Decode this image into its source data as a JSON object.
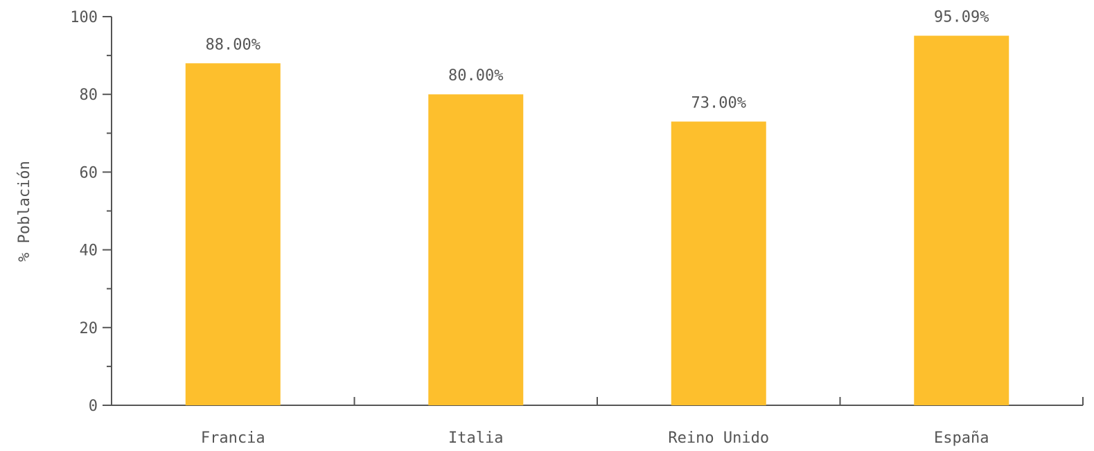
{
  "chart_data": {
    "type": "bar",
    "title": "",
    "xlabel": "",
    "ylabel": "% Población",
    "categories": [
      "Francia",
      "Italia",
      "Reino Unido",
      "España"
    ],
    "values": [
      88.0,
      80.0,
      73.0,
      95.09
    ],
    "value_labels": [
      "88.00%",
      "80.00%",
      "73.00%",
      "95.09%"
    ],
    "ylim": [
      0,
      100
    ],
    "yticks": [
      0,
      20,
      40,
      60,
      80,
      100
    ],
    "ytick_labels": [
      "0",
      "20",
      "40",
      "60",
      "80",
      "100"
    ],
    "bar_color": "#FDBF2D",
    "axis_color": "#555555",
    "grid": false,
    "legend": "none"
  }
}
